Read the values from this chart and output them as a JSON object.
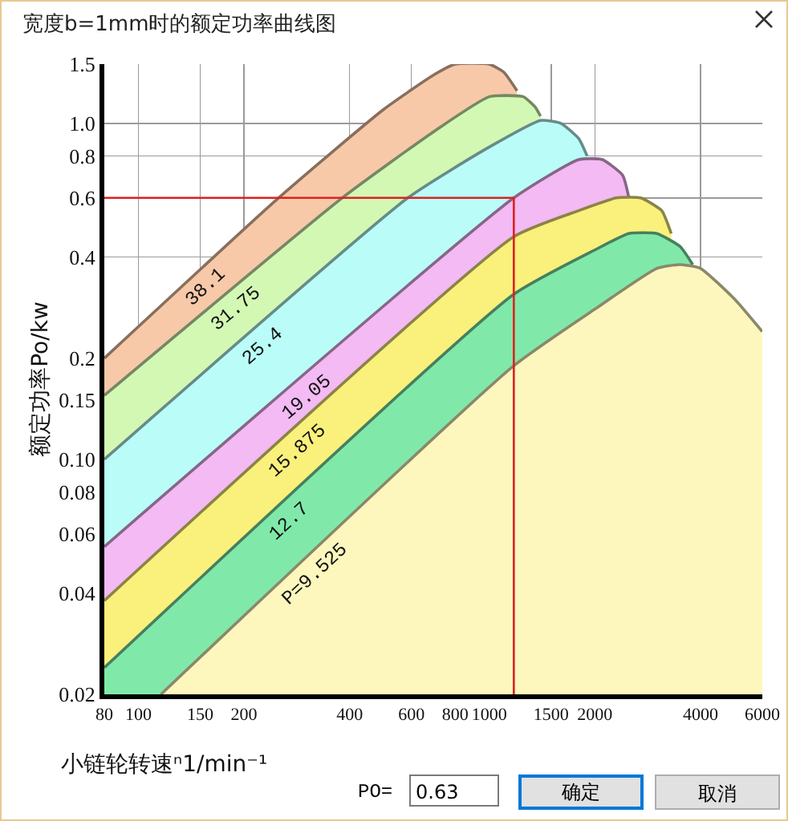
{
  "chart_data": {
    "type": "area",
    "title": "宽度b=1mm时的额定功率曲线图",
    "xlabel": "小链轮转速ⁿ1/min⁻¹",
    "ylabel": "额定功率Po/kw",
    "log": "xy",
    "grid": true,
    "legend": false,
    "xlim": [
      80,
      6000
    ],
    "xticks": [
      80,
      100,
      150,
      200,
      400,
      600,
      800,
      1000,
      1500,
      2000,
      4000,
      6000
    ],
    "ylim": [
      0.02,
      1.5
    ],
    "yticks": [
      0.02,
      0.04,
      0.06,
      0.08,
      {
        "value": 0.1,
        "label": "0.10"
      },
      0.15,
      0.2,
      0.4,
      0.6,
      0.8,
      {
        "value": 1,
        "label": "1.0"
      },
      1.5
    ],
    "series": [
      {
        "name": "38.1",
        "color": "#f7c9a9",
        "x": [
          80,
          251,
          500,
          700,
          800,
          1000,
          1100,
          1200
        ],
        "values": [
          0.2,
          0.6,
          1.1,
          1.4,
          1.5,
          1.5,
          1.42,
          1.25
        ]
      },
      {
        "name": "31.75",
        "color": "#d3f8b4",
        "x": [
          80,
          381,
          700,
          1000,
          1250,
          1350,
          1400
        ],
        "values": [
          0.155,
          0.6,
          0.95,
          1.2,
          1.2,
          1.12,
          1.05
        ]
      },
      {
        "name": "25.4",
        "color": "#bafcf8",
        "x": [
          80,
          586,
          1000,
          1400,
          1600,
          1800,
          1900
        ],
        "values": [
          0.1,
          0.6,
          0.85,
          1.02,
          1.0,
          0.9,
          0.8
        ]
      },
      {
        "name": "19.05",
        "color": "#f3baf3",
        "x": [
          80,
          1175,
          1800,
          2100,
          2400,
          2500
        ],
        "values": [
          0.055,
          0.6,
          0.78,
          0.78,
          0.7,
          0.6
        ]
      },
      {
        "name": "15.875",
        "color": "#faf07c",
        "x": [
          80,
          1175,
          1800,
          2300,
          2700,
          3100,
          3300
        ],
        "values": [
          0.038,
          0.46,
          0.55,
          0.6,
          0.6,
          0.55,
          0.47
        ]
      },
      {
        "name": "12.7",
        "color": "#80e9aa",
        "x": [
          80,
          1175,
          2000,
          2500,
          3000,
          3500,
          3800
        ],
        "values": [
          0.024,
          0.31,
          0.42,
          0.47,
          0.47,
          0.43,
          0.38
        ]
      },
      {
        "name": "P=9.525",
        "color": "#fdf7be",
        "x": [
          116,
          1175,
          2000,
          3000,
          3500,
          4000,
          5000,
          6000
        ],
        "values": [
          0.02,
          0.19,
          0.28,
          0.37,
          0.38,
          0.37,
          0.3,
          0.24
        ]
      }
    ],
    "ref_lines": [
      {
        "axis": "y",
        "value": 0.6,
        "color": "#dd2222"
      },
      {
        "axis": "x",
        "value": 1175,
        "color": "#dd2222"
      }
    ],
    "annotations": [
      "PO=",
      "0.63",
      "确定",
      "取消"
    ]
  }
}
